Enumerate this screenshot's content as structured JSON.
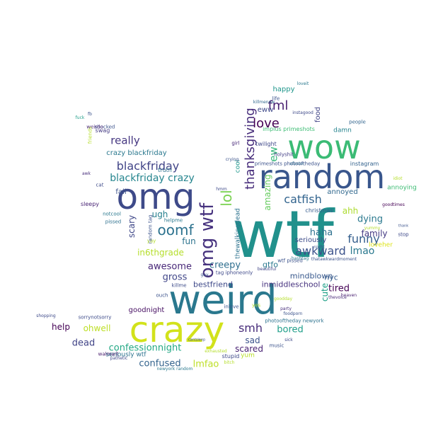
{
  "cloud": {
    "background": "#ffffff",
    "words": [
      {
        "text": "wtf",
        "color": "#21918c"
      },
      {
        "text": "weird",
        "color": "#2a788e"
      },
      {
        "text": "crazy",
        "color": "#d2e21b"
      },
      {
        "text": "random",
        "color": "#39568c"
      },
      {
        "text": "wow",
        "color": "#3bbb75"
      },
      {
        "text": "omg",
        "color": "#3e4a89"
      },
      {
        "text": "omg wtf",
        "color": "#46327e"
      },
      {
        "text": "oomf",
        "color": "#2c728e"
      },
      {
        "text": "lol",
        "color": "#7ad151"
      },
      {
        "text": "thanksgiving",
        "color": "#472d7b"
      },
      {
        "text": "fml",
        "color": "#481f70"
      },
      {
        "text": "love",
        "color": "#440154"
      },
      {
        "text": "ew",
        "color": "#35b779"
      },
      {
        "text": "catfish",
        "color": "#32648e"
      },
      {
        "text": "blackfriday",
        "color": "#414487"
      },
      {
        "text": "blackfriday crazy",
        "color": "#25858e"
      },
      {
        "text": "really",
        "color": "#453781"
      },
      {
        "text": "crazy blackfriday",
        "color": "#2a788e"
      },
      {
        "text": "awkward",
        "color": "#3b528b"
      },
      {
        "text": "smh",
        "color": "#472c7a"
      },
      {
        "text": "funny",
        "color": "#355f8d"
      },
      {
        "text": "lmao",
        "color": "#2a788e"
      },
      {
        "text": "haha",
        "color": "#2d708e"
      },
      {
        "text": "confessionnight",
        "color": "#22a884"
      },
      {
        "text": "confused",
        "color": "#33638d"
      },
      {
        "text": "lmfao",
        "color": "#bddf26"
      },
      {
        "text": "bored",
        "color": "#1f9e89"
      },
      {
        "text": "scared",
        "color": "#482173"
      },
      {
        "text": "sad",
        "color": "#3b528b"
      },
      {
        "text": "dead",
        "color": "#414487"
      },
      {
        "text": "help",
        "color": "#440154"
      },
      {
        "text": "ohwell",
        "color": "#bddf26"
      },
      {
        "text": "goodnight",
        "color": "#471063"
      },
      {
        "text": "awesome",
        "color": "#482878"
      },
      {
        "text": "gross",
        "color": "#404688"
      },
      {
        "text": "creepy",
        "color": "#2e6e8e"
      },
      {
        "text": "bestfriend",
        "color": "#3e4989"
      },
      {
        "text": "inmiddleschool",
        "color": "#46327e"
      },
      {
        "text": "tired",
        "color": "#440154"
      },
      {
        "text": "cute",
        "color": "#1fa088"
      },
      {
        "text": "dying",
        "color": "#2a788e"
      },
      {
        "text": "family",
        "color": "#443983"
      },
      {
        "text": "in6thgrade",
        "color": "#b5de2b"
      },
      {
        "text": "fun",
        "color": "#2c738e"
      },
      {
        "text": "scary",
        "color": "#3f4788"
      },
      {
        "text": "ugh",
        "color": "#27808e"
      },
      {
        "text": "amazing",
        "color": "#65cb5e"
      },
      {
        "text": "thewalkingdead",
        "color": "#2c728e"
      },
      {
        "text": "cool",
        "color": "#1f988b"
      },
      {
        "text": "annoyed",
        "color": "#31688e"
      },
      {
        "text": "ahh",
        "color": "#addc30"
      },
      {
        "text": "annoying",
        "color": "#3dbc74"
      },
      {
        "text": "loveher",
        "color": "#dde318"
      },
      {
        "text": "mindblown",
        "color": "#38588c"
      },
      {
        "text": "nyc",
        "color": "#365c8d"
      },
      {
        "text": "seriously",
        "color": "#3e4c8a"
      },
      {
        "text": "gtfo",
        "color": "#2a788e"
      },
      {
        "text": "twilight",
        "color": "#3f4889"
      },
      {
        "text": "happy",
        "color": "#1f968b"
      },
      {
        "text": "eww",
        "color": "#3e4989"
      },
      {
        "text": "food",
        "color": "#414487"
      },
      {
        "text": "damn",
        "color": "#25838e"
      },
      {
        "text": "instagram",
        "color": "#33628d"
      },
      {
        "text": "people",
        "color": "#32658e"
      },
      {
        "text": "fail",
        "color": "#3b528b"
      },
      {
        "text": "pissed",
        "color": "#2d708e"
      },
      {
        "text": "notcool",
        "color": "#2a788e"
      },
      {
        "text": "truth",
        "color": "#2c728e"
      },
      {
        "text": "sleepy",
        "color": "#482374"
      },
      {
        "text": "shocked",
        "color": "#3b528b"
      },
      {
        "text": "swag",
        "color": "#443a83"
      },
      {
        "text": "weirdo",
        "color": "#482475"
      },
      {
        "text": "christmas",
        "color": "#365c8d"
      },
      {
        "text": "stupid",
        "color": "#3e4989"
      },
      {
        "text": "yum",
        "color": "#b8de29"
      },
      {
        "text": "music",
        "color": "#3b528b"
      },
      {
        "text": "seriously wtf",
        "color": "#2c728e"
      },
      {
        "text": "walmart",
        "color": "#481a6c"
      },
      {
        "text": "shopping",
        "color": "#3e4a89"
      },
      {
        "text": "sorrynotsorry",
        "color": "#3e4c8a"
      },
      {
        "text": "photooftheday newyork",
        "color": "#2c728e"
      },
      {
        "text": "inlove",
        "color": "#39568c"
      },
      {
        "text": "yes",
        "color": "#b5de2b"
      },
      {
        "text": "ouch",
        "color": "#3b528b"
      },
      {
        "text": "killme",
        "color": "#3e4c8a"
      },
      {
        "text": "helpme",
        "color": "#2a788e"
      },
      {
        "text": "yay",
        "color": "#b5de2b"
      },
      {
        "text": "cat",
        "color": "#3e4a89"
      },
      {
        "text": "fb",
        "color": "#3b528b"
      },
      {
        "text": "fuck",
        "color": "#1f9e89"
      },
      {
        "text": "awk",
        "color": "#472d7b"
      },
      {
        "text": "girl",
        "color": "#482878"
      },
      {
        "text": "life",
        "color": "#3b528b"
      },
      {
        "text": "loveit",
        "color": "#2a788e"
      },
      {
        "text": "instagood",
        "color": "#3e4989"
      },
      {
        "text": "killmenow",
        "color": "#31688e"
      },
      {
        "text": "holyshit",
        "color": "#433e85"
      },
      {
        "text": "xfactor",
        "color": "#2a788e"
      },
      {
        "text": "foodporn",
        "color": "#3b528b"
      },
      {
        "text": "heaven",
        "color": "#481f70"
      },
      {
        "text": "thevoice",
        "color": "#482878"
      },
      {
        "text": "sick",
        "color": "#3e4989"
      },
      {
        "text": "party",
        "color": "#472d7b"
      },
      {
        "text": "night",
        "color": "#3b528b"
      },
      {
        "text": "wtf pissed",
        "color": "#3b528b"
      },
      {
        "text": "beautiful",
        "color": "#414487"
      },
      {
        "text": "random tag",
        "color": "#3b528b"
      },
      {
        "text": "tag iphoneonly",
        "color": "#3e4989"
      },
      {
        "text": "exhausted",
        "color": "#b5de2b"
      },
      {
        "text": "bitch",
        "color": "#b5de2b"
      },
      {
        "text": "pathetic",
        "color": "#3e4989"
      },
      {
        "text": "newyork random",
        "color": "#2a788e"
      },
      {
        "text": "cantsleep",
        "color": "#3b528b"
      },
      {
        "text": "thatawkwardmoment",
        "color": "#3b528b"
      },
      {
        "text": "stop",
        "color": "#3e4989"
      },
      {
        "text": "yummy",
        "color": "#b5de2b"
      },
      {
        "text": "goodtimes",
        "color": "#440154"
      },
      {
        "text": "idiot",
        "color": "#b5de2b"
      },
      {
        "text": "implus primeshots",
        "color": "#3dbc74"
      },
      {
        "text": "primeshots photooftheday",
        "color": "#3b528b"
      },
      {
        "text": "crying",
        "color": "#3b528b"
      },
      {
        "text": "hmm",
        "color": "#3e4989"
      },
      {
        "text": "friends",
        "color": "#b5de2b"
      },
      {
        "text": "thank",
        "color": "#3b528b"
      },
      {
        "text": "goodday",
        "color": "#b5de2b"
      },
      {
        "text": "hashtag",
        "color": "#2a788e"
      },
      {
        "text": "gay",
        "color": "#3b528b"
      }
    ]
  }
}
